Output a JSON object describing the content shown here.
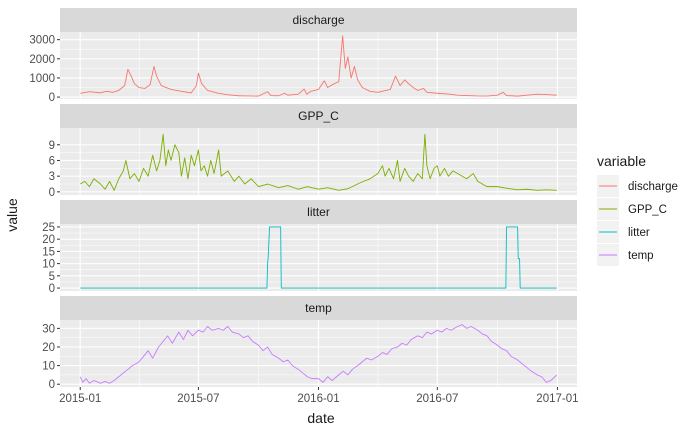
{
  "chart_data": {
    "type": "line",
    "layout": "faceted",
    "xlabel": "date",
    "ylabel": "value",
    "x_ticks": [
      "2015-01",
      "2015-07",
      "2016-01",
      "2016-07",
      "2017-01"
    ],
    "xlim": [
      "2014-12-01",
      "2017-01-31"
    ],
    "legend": {
      "title": "variable",
      "position": "right",
      "entries": [
        "discharge",
        "GPP_C",
        "litter",
        "temp"
      ]
    },
    "facets": [
      {
        "name": "discharge",
        "color": "#F8766D",
        "ylim": [
          -100,
          3400
        ],
        "yticks": [
          0,
          1000,
          2000,
          3000
        ],
        "points": [
          [
            "2015-01-01",
            200
          ],
          [
            "2015-01-15",
            280
          ],
          [
            "2015-02-01",
            220
          ],
          [
            "2015-02-10",
            300
          ],
          [
            "2015-02-20",
            250
          ],
          [
            "2015-03-01",
            350
          ],
          [
            "2015-03-10",
            600
          ],
          [
            "2015-03-15",
            1450
          ],
          [
            "2015-03-20",
            1100
          ],
          [
            "2015-03-25",
            700
          ],
          [
            "2015-04-01",
            500
          ],
          [
            "2015-04-10",
            450
          ],
          [
            "2015-04-18",
            650
          ],
          [
            "2015-04-24",
            1600
          ],
          [
            "2015-04-28",
            1100
          ],
          [
            "2015-05-05",
            600
          ],
          [
            "2015-05-20",
            400
          ],
          [
            "2015-06-05",
            300
          ],
          [
            "2015-06-20",
            220
          ],
          [
            "2015-06-28",
            600
          ],
          [
            "2015-07-01",
            1250
          ],
          [
            "2015-07-06",
            700
          ],
          [
            "2015-07-15",
            350
          ],
          [
            "2015-08-01",
            200
          ],
          [
            "2015-08-15",
            120
          ],
          [
            "2015-09-01",
            70
          ],
          [
            "2015-09-15",
            60
          ],
          [
            "2015-10-01",
            50
          ],
          [
            "2015-10-15",
            280
          ],
          [
            "2015-10-20",
            80
          ],
          [
            "2015-11-01",
            70
          ],
          [
            "2015-11-10",
            200
          ],
          [
            "2015-11-15",
            100
          ],
          [
            "2015-12-01",
            150
          ],
          [
            "2015-12-10",
            420
          ],
          [
            "2015-12-14",
            150
          ],
          [
            "2015-12-20",
            300
          ],
          [
            "2016-01-01",
            400
          ],
          [
            "2016-01-10",
            850
          ],
          [
            "2016-01-15",
            500
          ],
          [
            "2016-01-25",
            700
          ],
          [
            "2016-02-01",
            800
          ],
          [
            "2016-02-07",
            3200
          ],
          [
            "2016-02-11",
            1500
          ],
          [
            "2016-02-15",
            2100
          ],
          [
            "2016-02-20",
            1000
          ],
          [
            "2016-02-25",
            1600
          ],
          [
            "2016-03-01",
            900
          ],
          [
            "2016-03-08",
            500
          ],
          [
            "2016-03-20",
            300
          ],
          [
            "2016-04-01",
            250
          ],
          [
            "2016-04-20",
            400
          ],
          [
            "2016-04-28",
            1100
          ],
          [
            "2016-05-05",
            600
          ],
          [
            "2016-05-12",
            900
          ],
          [
            "2016-05-18",
            700
          ],
          [
            "2016-05-25",
            500
          ],
          [
            "2016-06-01",
            350
          ],
          [
            "2016-06-10",
            450
          ],
          [
            "2016-06-15",
            250
          ],
          [
            "2016-07-01",
            200
          ],
          [
            "2016-07-20",
            150
          ],
          [
            "2016-08-01",
            100
          ],
          [
            "2016-08-15",
            80
          ],
          [
            "2016-09-01",
            60
          ],
          [
            "2016-09-15",
            55
          ],
          [
            "2016-10-01",
            100
          ],
          [
            "2016-10-10",
            250
          ],
          [
            "2016-10-15",
            80
          ],
          [
            "2016-11-01",
            50
          ],
          [
            "2016-11-15",
            100
          ],
          [
            "2016-12-01",
            150
          ],
          [
            "2016-12-15",
            130
          ],
          [
            "2016-12-31",
            100
          ]
        ]
      },
      {
        "name": "GPP_C",
        "color": "#7CAE00",
        "ylim": [
          -0.6,
          12.2
        ],
        "yticks": [
          0,
          3,
          6,
          9
        ],
        "points": [
          [
            "2015-01-01",
            1.5
          ],
          [
            "2015-01-08",
            2.0
          ],
          [
            "2015-01-15",
            1.0
          ],
          [
            "2015-01-22",
            2.5
          ],
          [
            "2015-02-01",
            1.5
          ],
          [
            "2015-02-08",
            0.5
          ],
          [
            "2015-02-15",
            2.0
          ],
          [
            "2015-02-22",
            0.3
          ],
          [
            "2015-03-01",
            2.5
          ],
          [
            "2015-03-08",
            4.0
          ],
          [
            "2015-03-12",
            6.0
          ],
          [
            "2015-03-18",
            2.5
          ],
          [
            "2015-03-25",
            3.5
          ],
          [
            "2015-04-01",
            2.0
          ],
          [
            "2015-04-08",
            4.5
          ],
          [
            "2015-04-15",
            3.0
          ],
          [
            "2015-04-22",
            7.0
          ],
          [
            "2015-04-28",
            4.0
          ],
          [
            "2015-05-03",
            6.0
          ],
          [
            "2015-05-08",
            11.0
          ],
          [
            "2015-05-12",
            5.0
          ],
          [
            "2015-05-16",
            8.0
          ],
          [
            "2015-05-20",
            6.0
          ],
          [
            "2015-05-26",
            9.0
          ],
          [
            "2015-06-01",
            7.5
          ],
          [
            "2015-06-05",
            3.0
          ],
          [
            "2015-06-10",
            6.5
          ],
          [
            "2015-06-15",
            2.5
          ],
          [
            "2015-06-20",
            7.0
          ],
          [
            "2015-06-25",
            5.0
          ],
          [
            "2015-07-01",
            8.0
          ],
          [
            "2015-07-05",
            4.0
          ],
          [
            "2015-07-10",
            5.0
          ],
          [
            "2015-07-15",
            3.0
          ],
          [
            "2015-07-20",
            6.0
          ],
          [
            "2015-07-25",
            3.5
          ],
          [
            "2015-08-01",
            8.0
          ],
          [
            "2015-08-05",
            3.0
          ],
          [
            "2015-08-15",
            4.0
          ],
          [
            "2015-08-25",
            2.0
          ],
          [
            "2015-09-01",
            3.0
          ],
          [
            "2015-09-10",
            1.5
          ],
          [
            "2015-09-20",
            2.5
          ],
          [
            "2015-10-01",
            1.0
          ],
          [
            "2015-10-15",
            1.5
          ],
          [
            "2015-11-01",
            0.8
          ],
          [
            "2015-11-15",
            1.2
          ],
          [
            "2015-12-01",
            0.5
          ],
          [
            "2015-12-15",
            1.0
          ],
          [
            "2016-01-01",
            0.5
          ],
          [
            "2016-01-15",
            0.8
          ],
          [
            "2016-02-01",
            0.3
          ],
          [
            "2016-02-15",
            0.6
          ],
          [
            "2016-03-01",
            1.5
          ],
          [
            "2016-03-10",
            2.0
          ],
          [
            "2016-03-20",
            2.5
          ],
          [
            "2016-04-01",
            3.5
          ],
          [
            "2016-04-08",
            5.0
          ],
          [
            "2016-04-12",
            3.0
          ],
          [
            "2016-04-18",
            4.5
          ],
          [
            "2016-04-25",
            2.5
          ],
          [
            "2016-05-01",
            6.0
          ],
          [
            "2016-05-05",
            2.0
          ],
          [
            "2016-05-12",
            4.5
          ],
          [
            "2016-05-18",
            3.0
          ],
          [
            "2016-05-25",
            2.0
          ],
          [
            "2016-06-01",
            3.5
          ],
          [
            "2016-06-08",
            2.5
          ],
          [
            "2016-06-12",
            11.0
          ],
          [
            "2016-06-15",
            5.0
          ],
          [
            "2016-06-20",
            2.5
          ],
          [
            "2016-06-26",
            4.5
          ],
          [
            "2016-07-01",
            5.0
          ],
          [
            "2016-07-05",
            3.0
          ],
          [
            "2016-07-12",
            4.5
          ],
          [
            "2016-07-18",
            3.0
          ],
          [
            "2016-07-25",
            4.0
          ],
          [
            "2016-08-01",
            3.5
          ],
          [
            "2016-08-15",
            2.5
          ],
          [
            "2016-08-25",
            3.5
          ],
          [
            "2016-09-01",
            2.0
          ],
          [
            "2016-09-15",
            1.0
          ],
          [
            "2016-10-01",
            1.0
          ],
          [
            "2016-10-15",
            0.7
          ],
          [
            "2016-11-01",
            0.4
          ],
          [
            "2016-11-15",
            0.5
          ],
          [
            "2016-12-01",
            0.3
          ],
          [
            "2016-12-15",
            0.4
          ],
          [
            "2016-12-31",
            0.3
          ]
        ]
      },
      {
        "name": "litter",
        "color": "#00BFC4",
        "ylim": [
          -1.2,
          26.2
        ],
        "yticks": [
          0,
          5,
          10,
          15,
          20,
          25
        ],
        "points": [
          [
            "2015-01-01",
            0
          ],
          [
            "2015-10-14",
            0
          ],
          [
            "2015-10-15",
            10
          ],
          [
            "2015-10-16",
            13
          ],
          [
            "2015-10-18",
            25
          ],
          [
            "2015-11-04",
            25
          ],
          [
            "2015-11-05",
            0
          ],
          [
            "2016-10-14",
            0
          ],
          [
            "2016-10-15",
            25
          ],
          [
            "2016-11-01",
            25
          ],
          [
            "2016-11-02",
            12
          ],
          [
            "2016-11-04",
            12
          ],
          [
            "2016-11-05",
            0
          ],
          [
            "2016-12-31",
            0
          ]
        ]
      },
      {
        "name": "temp",
        "color": "#C77CFF",
        "ylim": [
          -1.5,
          34.5
        ],
        "yticks": [
          0,
          10,
          20,
          30
        ],
        "points": [
          [
            "2015-01-01",
            4
          ],
          [
            "2015-01-05",
            1
          ],
          [
            "2015-01-10",
            3
          ],
          [
            "2015-01-15",
            0.5
          ],
          [
            "2015-01-22",
            2
          ],
          [
            "2015-02-01",
            0.5
          ],
          [
            "2015-02-08",
            1.5
          ],
          [
            "2015-02-15",
            0.5
          ],
          [
            "2015-02-22",
            2
          ],
          [
            "2015-03-01",
            4
          ],
          [
            "2015-03-08",
            6
          ],
          [
            "2015-03-15",
            8
          ],
          [
            "2015-03-22",
            10
          ],
          [
            "2015-04-01",
            12
          ],
          [
            "2015-04-08",
            15
          ],
          [
            "2015-04-15",
            18
          ],
          [
            "2015-04-22",
            14
          ],
          [
            "2015-05-01",
            20
          ],
          [
            "2015-05-08",
            23
          ],
          [
            "2015-05-15",
            26
          ],
          [
            "2015-05-22",
            22
          ],
          [
            "2015-06-01",
            28
          ],
          [
            "2015-06-08",
            24
          ],
          [
            "2015-06-15",
            29
          ],
          [
            "2015-06-22",
            26
          ],
          [
            "2015-07-01",
            29
          ],
          [
            "2015-07-08",
            28
          ],
          [
            "2015-07-15",
            31
          ],
          [
            "2015-07-22",
            29
          ],
          [
            "2015-08-01",
            30
          ],
          [
            "2015-08-08",
            29
          ],
          [
            "2015-08-15",
            31
          ],
          [
            "2015-08-22",
            28
          ],
          [
            "2015-09-01",
            27
          ],
          [
            "2015-09-08",
            25
          ],
          [
            "2015-09-15",
            26
          ],
          [
            "2015-09-22",
            23
          ],
          [
            "2015-10-01",
            21
          ],
          [
            "2015-10-08",
            18
          ],
          [
            "2015-10-15",
            20
          ],
          [
            "2015-10-22",
            16
          ],
          [
            "2015-11-01",
            14
          ],
          [
            "2015-11-08",
            12
          ],
          [
            "2015-11-15",
            13
          ],
          [
            "2015-11-22",
            10
          ],
          [
            "2015-12-01",
            8
          ],
          [
            "2015-12-08",
            6
          ],
          [
            "2015-12-15",
            4
          ],
          [
            "2015-12-22",
            3
          ],
          [
            "2016-01-01",
            3
          ],
          [
            "2016-01-08",
            1
          ],
          [
            "2016-01-15",
            4
          ],
          [
            "2016-01-22",
            2
          ],
          [
            "2016-02-01",
            5
          ],
          [
            "2016-02-08",
            7
          ],
          [
            "2016-02-15",
            5
          ],
          [
            "2016-02-22",
            8
          ],
          [
            "2016-03-01",
            10
          ],
          [
            "2016-03-08",
            12
          ],
          [
            "2016-03-15",
            14
          ],
          [
            "2016-03-22",
            13
          ],
          [
            "2016-04-01",
            15
          ],
          [
            "2016-04-08",
            17
          ],
          [
            "2016-04-15",
            16
          ],
          [
            "2016-04-22",
            19
          ],
          [
            "2016-05-01",
            20
          ],
          [
            "2016-05-08",
            22
          ],
          [
            "2016-05-15",
            21
          ],
          [
            "2016-05-22",
            24
          ],
          [
            "2016-06-01",
            26
          ],
          [
            "2016-06-08",
            25
          ],
          [
            "2016-06-15",
            28
          ],
          [
            "2016-06-22",
            27
          ],
          [
            "2016-07-01",
            29
          ],
          [
            "2016-07-08",
            28
          ],
          [
            "2016-07-15",
            30
          ],
          [
            "2016-07-22",
            29
          ],
          [
            "2016-08-01",
            31
          ],
          [
            "2016-08-08",
            32
          ],
          [
            "2016-08-15",
            30
          ],
          [
            "2016-08-22",
            31
          ],
          [
            "2016-09-01",
            29
          ],
          [
            "2016-09-08",
            27
          ],
          [
            "2016-09-15",
            26
          ],
          [
            "2016-09-22",
            23
          ],
          [
            "2016-10-01",
            21
          ],
          [
            "2016-10-08",
            19
          ],
          [
            "2016-10-15",
            18
          ],
          [
            "2016-10-22",
            15
          ],
          [
            "2016-11-01",
            13
          ],
          [
            "2016-11-08",
            11
          ],
          [
            "2016-11-15",
            9
          ],
          [
            "2016-11-22",
            7
          ],
          [
            "2016-12-01",
            5
          ],
          [
            "2016-12-08",
            4
          ],
          [
            "2016-12-15",
            1
          ],
          [
            "2016-12-22",
            2
          ],
          [
            "2016-12-31",
            5
          ]
        ]
      }
    ]
  }
}
